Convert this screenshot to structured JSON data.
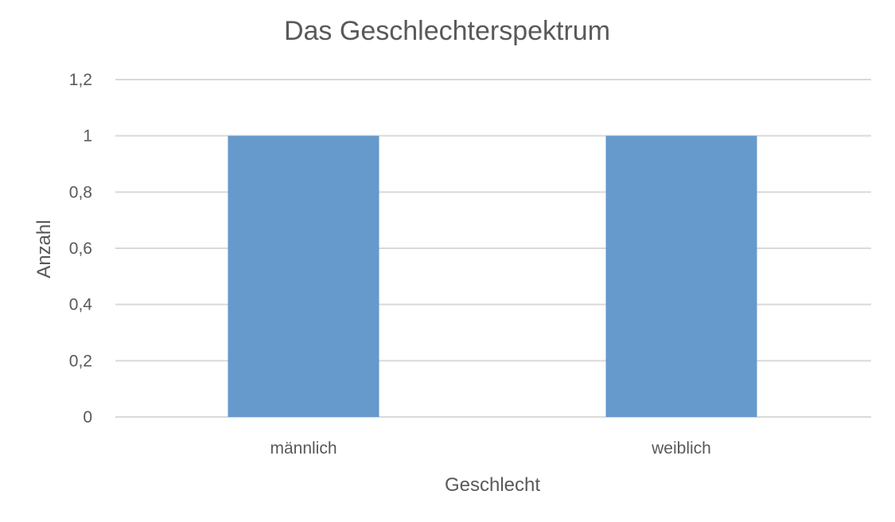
{
  "chart_data": {
    "type": "bar",
    "title": "Das Geschlechterspektrum",
    "xlabel": "Geschlecht",
    "ylabel": "Anzahl",
    "categories": [
      "männlich",
      "weiblich"
    ],
    "values": [
      1,
      1
    ],
    "ylim": [
      0,
      1.2
    ],
    "yticks": [
      "0",
      "0,2",
      "0,4",
      "0,6",
      "0,8",
      "1",
      "1,2"
    ],
    "grid": true,
    "bar_color": "#6699cc",
    "grid_color": "#d9d9d9",
    "text_color": "#595959"
  }
}
